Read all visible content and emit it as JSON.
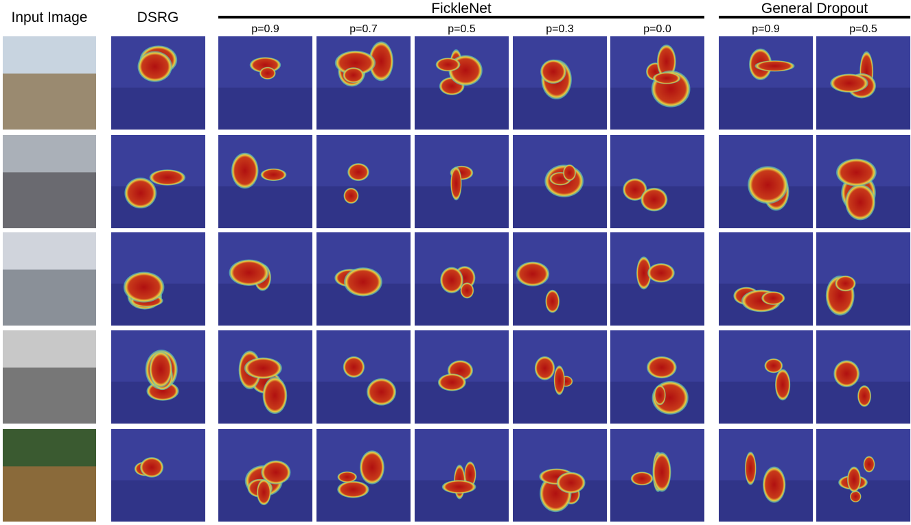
{
  "columns": {
    "input": "Input Image",
    "dsrg": "DSRG"
  },
  "groups": [
    {
      "label": "FickleNet",
      "columns": [
        "p=0.9",
        "p=0.7",
        "p=0.5",
        "p=0.3",
        "p=0.0"
      ]
    },
    {
      "label": "General Dropout",
      "columns": [
        "p=0.9",
        "p=0.5"
      ]
    }
  ]
}
